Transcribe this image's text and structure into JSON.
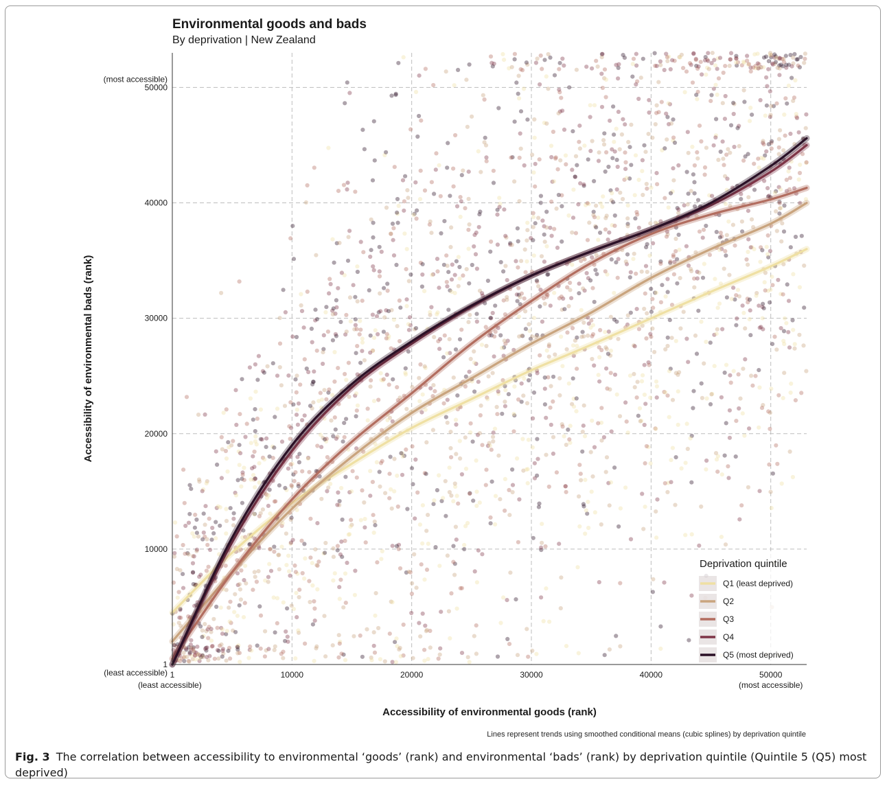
{
  "chart_data": {
    "type": "scatter",
    "title": "Environmental goods and bads",
    "subtitle": "By deprivation | New Zealand",
    "xlabel": "Accessibility of environmental goods (rank)",
    "ylabel": "Accessibility of environmental bads (rank)",
    "xlim": [
      1,
      53000
    ],
    "ylim": [
      1,
      53000
    ],
    "x_ticks": [
      {
        "value": 1,
        "label": "1",
        "sublabel": "(least accessible)"
      },
      {
        "value": 10000,
        "label": "10000",
        "sublabel": ""
      },
      {
        "value": 20000,
        "label": "20000",
        "sublabel": ""
      },
      {
        "value": 30000,
        "label": "30000",
        "sublabel": ""
      },
      {
        "value": 40000,
        "label": "40000",
        "sublabel": ""
      },
      {
        "value": 50000,
        "label": "50000",
        "sublabel": "(most accessible)"
      }
    ],
    "y_ticks": [
      {
        "value": 1,
        "label": "1",
        "sublabel": "(least accessible)"
      },
      {
        "value": 10000,
        "label": "10000",
        "sublabel": ""
      },
      {
        "value": 20000,
        "label": "20000",
        "sublabel": ""
      },
      {
        "value": 30000,
        "label": "30000",
        "sublabel": ""
      },
      {
        "value": 40000,
        "label": "40000",
        "sublabel": ""
      },
      {
        "value": 50000,
        "label": "50000",
        "sublabel": "(most accessible)"
      }
    ],
    "grid": "dashed major gridlines",
    "legend": {
      "title": "Deprivation quintile",
      "placement": "bottom-right"
    },
    "series": [
      {
        "name": "Q1 (least deprived)",
        "color": "#efe0a3",
        "x": [
          1,
          5000,
          10000,
          15000,
          20000,
          25000,
          30000,
          35000,
          40000,
          45000,
          50000,
          53000
        ],
        "y": [
          4500,
          9700,
          14000,
          17400,
          20500,
          23000,
          25500,
          27700,
          30000,
          32300,
          34500,
          36000
        ]
      },
      {
        "name": "Q2",
        "color": "#c9a47e",
        "x": [
          1,
          5000,
          10000,
          15000,
          20000,
          25000,
          30000,
          35000,
          40000,
          45000,
          50000,
          53000
        ],
        "y": [
          2000,
          8000,
          13500,
          18000,
          21800,
          24800,
          27800,
          30500,
          33500,
          36000,
          38200,
          40000
        ]
      },
      {
        "name": "Q3",
        "color": "#b26d5f",
        "x": [
          1,
          5000,
          10000,
          15000,
          20000,
          25000,
          30000,
          35000,
          40000,
          45000,
          50000,
          53000
        ],
        "y": [
          500,
          8000,
          14300,
          19300,
          23500,
          27800,
          31500,
          34800,
          37300,
          39000,
          40300,
          41300
        ]
      },
      {
        "name": "Q4",
        "color": "#7e3547",
        "x": [
          1,
          5000,
          10000,
          15000,
          20000,
          25000,
          30000,
          35000,
          40000,
          45000,
          50000,
          53000
        ],
        "y": [
          0,
          10600,
          18500,
          24000,
          27800,
          31000,
          33700,
          35800,
          37700,
          39800,
          42700,
          45000
        ]
      },
      {
        "name": "Q5 (most deprived)",
        "color": "#2a1026",
        "x": [
          1,
          5000,
          10000,
          15000,
          20000,
          25000,
          30000,
          35000,
          40000,
          45000,
          50000,
          53000
        ],
        "y": [
          0,
          11000,
          19000,
          24300,
          28000,
          31100,
          33700,
          35800,
          37700,
          40000,
          43200,
          45600
        ]
      }
    ],
    "scatter_note": "dense semi-transparent points coloured by deprivation quintile covering the plot area"
  },
  "footnote": "Lines represent trends using smoothed conditional means (cubic splines) by deprivation quintile",
  "caption": {
    "label": "Fig. 3",
    "text": "The correlation between accessibility to environmental ‘goods’ (rank) and environmental ‘bads’ (rank) by deprivation quintile (Quintile 5 (Q5) most deprived)"
  }
}
